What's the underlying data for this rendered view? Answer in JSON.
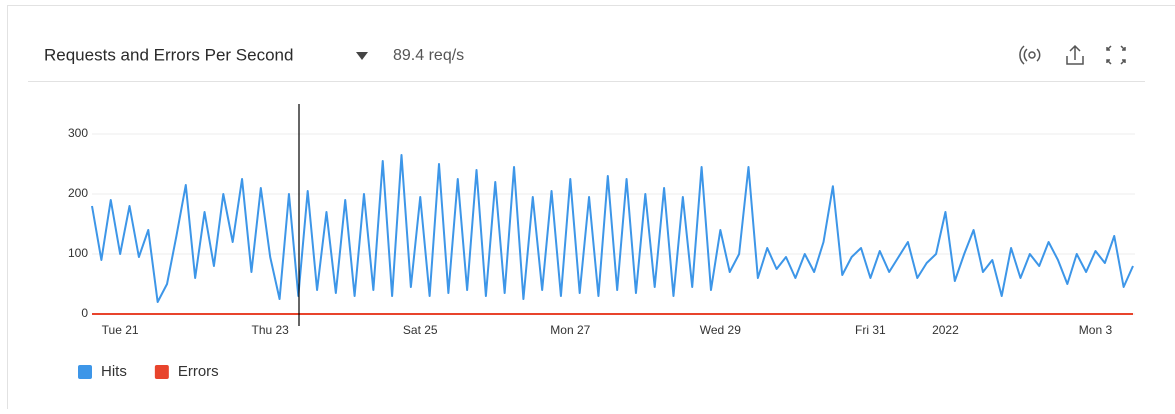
{
  "header": {
    "title": "Requests and Errors Per Second",
    "metric": "89.4 req/s"
  },
  "chart_data": {
    "type": "line",
    "categories": [
      null,
      null,
      null,
      "Tue 21",
      null,
      null,
      null,
      null,
      null,
      null,
      null,
      null,
      null,
      null,
      null,
      null,
      null,
      null,
      null,
      "Thu 23",
      null,
      null,
      null,
      null,
      null,
      null,
      null,
      null,
      null,
      null,
      null,
      null,
      null,
      null,
      null,
      "Sat 25",
      null,
      null,
      null,
      null,
      null,
      null,
      null,
      null,
      null,
      null,
      null,
      null,
      null,
      null,
      null,
      "Mon 27",
      null,
      null,
      null,
      null,
      null,
      null,
      null,
      null,
      null,
      null,
      null,
      null,
      null,
      null,
      null,
      "Wed 29",
      null,
      null,
      null,
      null,
      null,
      null,
      null,
      null,
      null,
      null,
      null,
      null,
      null,
      null,
      null,
      "Fri 31",
      null,
      null,
      null,
      null,
      null,
      null,
      null,
      "2022",
      null,
      null,
      null,
      null,
      null,
      null,
      null,
      null,
      null,
      null,
      null,
      null,
      null,
      null,
      null,
      "Mon 3",
      null,
      null,
      null,
      null
    ],
    "series": [
      {
        "name": "Hits",
        "color": "#3d96e8",
        "values": [
          180,
          90,
          190,
          100,
          180,
          95,
          140,
          20,
          50,
          130,
          215,
          60,
          170,
          80,
          200,
          120,
          225,
          70,
          210,
          95,
          25,
          200,
          30,
          205,
          40,
          170,
          35,
          190,
          30,
          200,
          40,
          255,
          30,
          265,
          45,
          195,
          30,
          250,
          35,
          225,
          40,
          240,
          30,
          220,
          35,
          245,
          25,
          195,
          40,
          205,
          30,
          225,
          35,
          195,
          30,
          230,
          40,
          225,
          35,
          200,
          45,
          210,
          30,
          195,
          45,
          245,
          40,
          140,
          70,
          100,
          245,
          60,
          110,
          75,
          95,
          60,
          100,
          70,
          120,
          213,
          65,
          95,
          110,
          60,
          105,
          70,
          95,
          120,
          60,
          85,
          100,
          170,
          55,
          100,
          140,
          70,
          90,
          30,
          110,
          60,
          100,
          80,
          120,
          90,
          50,
          100,
          70,
          105,
          85,
          130,
          45,
          80
        ]
      },
      {
        "name": "Errors",
        "color": "#e8442c",
        "values": [
          0,
          0,
          0,
          0,
          0,
          0,
          0,
          0,
          0,
          0,
          0,
          0,
          0,
          0,
          0,
          0,
          0,
          0,
          0,
          0,
          0,
          0,
          0,
          0,
          0,
          0,
          0,
          0,
          0,
          0,
          0,
          0,
          0,
          0,
          0,
          0,
          0,
          0,
          0,
          0,
          0,
          0,
          0,
          0,
          0,
          0,
          0,
          0,
          0,
          0,
          0,
          0,
          0,
          0,
          0,
          0,
          0,
          0,
          0,
          0,
          0,
          0,
          0,
          0,
          0,
          0,
          0,
          0,
          0,
          0,
          0,
          0,
          0,
          0,
          0,
          0,
          0,
          0,
          0,
          0,
          0,
          0,
          0,
          0,
          0,
          0,
          0,
          0,
          0,
          0,
          0,
          0,
          0,
          0,
          0,
          0,
          0,
          0,
          0,
          0,
          0,
          0,
          0,
          0,
          0,
          0,
          0,
          0,
          0,
          0,
          0,
          0
        ]
      }
    ],
    "ylim": [
      0,
      350
    ],
    "yticks": [
      0,
      100,
      200,
      300
    ],
    "grid": true
  }
}
